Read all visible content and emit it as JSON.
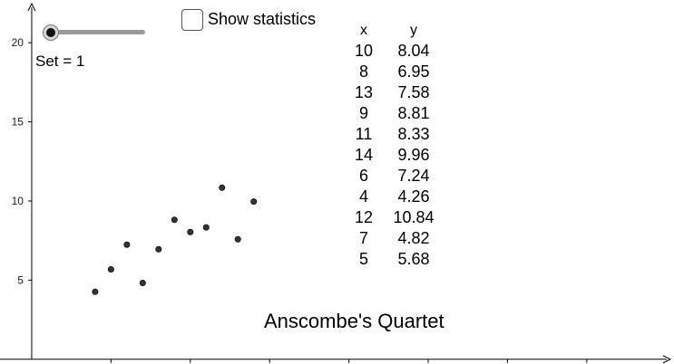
{
  "slider": {
    "label": "Set = 1",
    "value": 1,
    "min": 1,
    "max": 4
  },
  "checkbox": {
    "label": "Show statistics",
    "checked": false
  },
  "table": {
    "headers": {
      "x": "x",
      "y": "y"
    },
    "rows": [
      {
        "x": "10",
        "y": "8.04"
      },
      {
        "x": "8",
        "y": "6.95"
      },
      {
        "x": "13",
        "y": "7.58"
      },
      {
        "x": "9",
        "y": "8.81"
      },
      {
        "x": "11",
        "y": "8.33"
      },
      {
        "x": "14",
        "y": "9.96"
      },
      {
        "x": "6",
        "y": "7.24"
      },
      {
        "x": "4",
        "y": "4.26"
      },
      {
        "x": "12",
        "y": "10.84"
      },
      {
        "x": "7",
        "y": "4.82"
      },
      {
        "x": "5",
        "y": "5.68"
      }
    ]
  },
  "title": "Anscombe's Quartet",
  "chart_data": {
    "type": "scatter",
    "title": "Anscombe's Quartet",
    "xlabel": "",
    "ylabel": "",
    "xlim": [
      -2,
      40.5
    ],
    "ylim": [
      -0.3,
      22.7
    ],
    "x_ticks": [
      5,
      10,
      15,
      20,
      25,
      30,
      35
    ],
    "y_ticks": [
      5,
      10,
      15,
      20
    ],
    "origin_label": "0",
    "grid": false,
    "series": [
      {
        "points": [
          [
            10,
            8.04
          ],
          [
            8,
            6.95
          ],
          [
            13,
            7.58
          ],
          [
            9,
            8.81
          ],
          [
            11,
            8.33
          ],
          [
            14,
            9.96
          ],
          [
            6,
            7.24
          ],
          [
            4,
            4.26
          ],
          [
            12,
            10.84
          ],
          [
            7,
            4.82
          ],
          [
            5,
            5.68
          ]
        ],
        "color": "#333333"
      }
    ]
  },
  "colors": {
    "axis": "#000000",
    "point": "#333333",
    "slider_track": "#9a9a9a",
    "slider_knob": "#111111"
  }
}
